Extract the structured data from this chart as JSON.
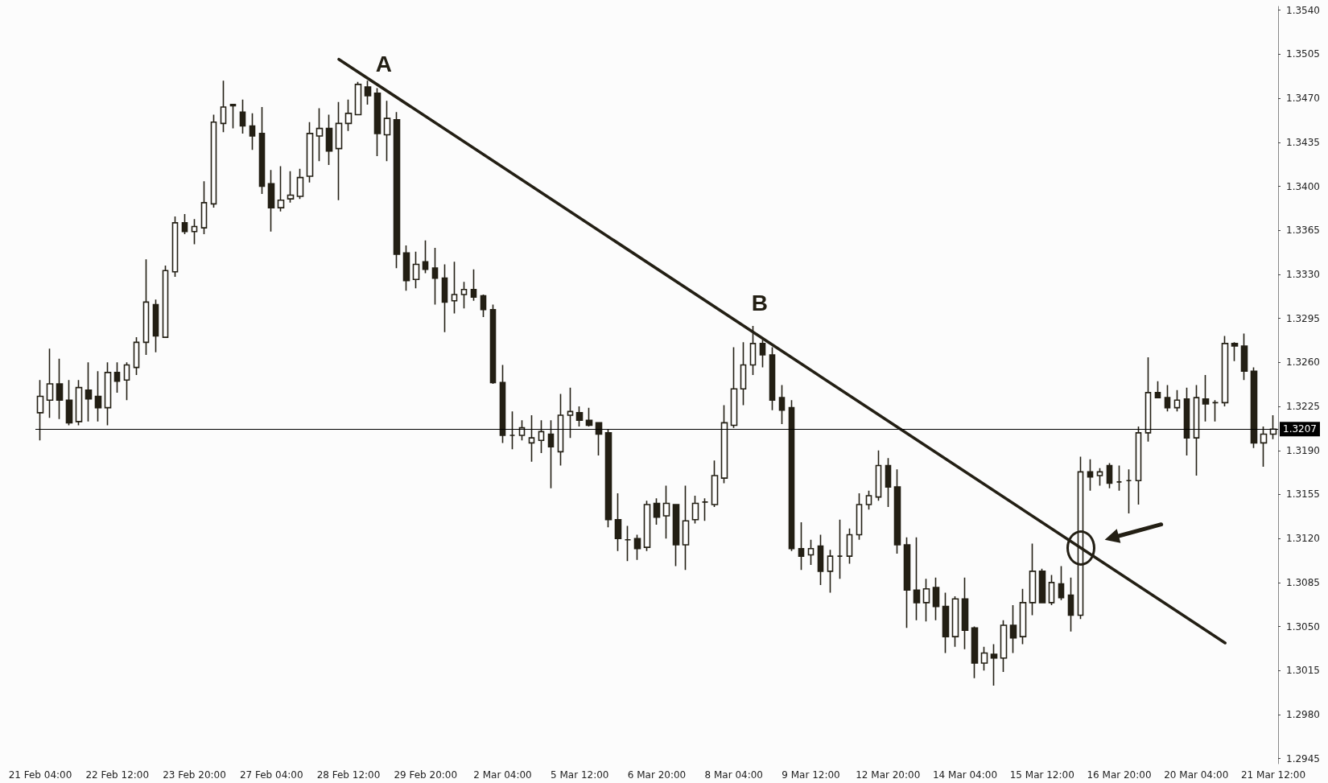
{
  "chart_data": {
    "type": "candlestick",
    "categories": [
      "21 Feb 04:00",
      null,
      null,
      null,
      null,
      null,
      null,
      null,
      "22 Feb 12:00",
      null,
      null,
      null,
      null,
      null,
      null,
      null,
      "23 Feb 20:00",
      null,
      null,
      null,
      null,
      null,
      null,
      null,
      "27 Feb 04:00",
      null,
      null,
      null,
      null,
      null,
      null,
      null,
      "28 Feb 12:00",
      null,
      null,
      null,
      null,
      null,
      null,
      null,
      "29 Feb 20:00",
      null,
      null,
      null,
      null,
      null,
      null,
      null,
      "2 Mar 04:00",
      null,
      null,
      null,
      null,
      null,
      null,
      null,
      "5 Mar 12:00",
      null,
      null,
      null,
      null,
      null,
      null,
      null,
      "6 Mar 20:00",
      null,
      null,
      null,
      null,
      null,
      null,
      null,
      "8 Mar 04:00",
      null,
      null,
      null,
      null,
      null,
      null,
      null,
      "9 Mar 12:00",
      null,
      null,
      null,
      null,
      null,
      null,
      null,
      "12 Mar 20:00",
      null,
      null,
      null,
      null,
      null,
      null,
      null,
      "14 Mar 04:00",
      null,
      null,
      null,
      null,
      null,
      null,
      null,
      "15 Mar 12:00",
      null,
      null,
      null,
      null,
      null,
      null,
      null,
      "16 Mar 20:00",
      null,
      null,
      null,
      null,
      null,
      null,
      null,
      "20 Mar 04:00",
      null,
      null,
      null,
      null,
      null,
      null,
      null,
      "21 Mar 12:00"
    ],
    "series": [
      {
        "type": "candlestick",
        "color": "#231f14",
        "ohlc": [
          [
            1.322,
            1.3246,
            1.3198,
            1.3233
          ],
          [
            1.323,
            1.3271,
            1.3216,
            1.3243
          ],
          [
            1.3243,
            1.3263,
            1.3215,
            1.323
          ],
          [
            1.323,
            1.3246,
            1.321,
            1.3212
          ],
          [
            1.3213,
            1.3246,
            1.321,
            1.324
          ],
          [
            1.3238,
            1.326,
            1.3213,
            1.3231
          ],
          [
            1.3233,
            1.3253,
            1.3213,
            1.3224
          ],
          [
            1.3224,
            1.326,
            1.321,
            1.3252
          ],
          [
            1.3252,
            1.326,
            1.3236,
            1.3245
          ],
          [
            1.3246,
            1.326,
            1.323,
            1.3258
          ],
          [
            1.3256,
            1.328,
            1.325,
            1.3276
          ],
          [
            1.3276,
            1.3342,
            1.3266,
            1.3308
          ],
          [
            1.3306,
            1.331,
            1.3268,
            1.3281
          ],
          [
            1.328,
            1.3337,
            1.328,
            1.3333
          ],
          [
            1.3332,
            1.3376,
            1.3328,
            1.3371
          ],
          [
            1.3371,
            1.3378,
            1.3362,
            1.3364
          ],
          [
            1.3364,
            1.3374,
            1.3354,
            1.3368
          ],
          [
            1.3367,
            1.3404,
            1.3362,
            1.3387
          ],
          [
            1.3386,
            1.3457,
            1.3383,
            1.3451
          ],
          [
            1.345,
            1.3484,
            1.3443,
            1.3463
          ],
          [
            1.3464,
            1.3465,
            1.3446,
            1.3465
          ],
          [
            1.3459,
            1.3469,
            1.3442,
            1.3448
          ],
          [
            1.3448,
            1.3458,
            1.3429,
            1.344
          ],
          [
            1.3442,
            1.3463,
            1.3394,
            1.34
          ],
          [
            1.3402,
            1.3413,
            1.3364,
            1.3383
          ],
          [
            1.3383,
            1.3416,
            1.338,
            1.3389
          ],
          [
            1.339,
            1.3412,
            1.3387,
            1.3393
          ],
          [
            1.3392,
            1.3414,
            1.339,
            1.3407
          ],
          [
            1.3408,
            1.3451,
            1.3403,
            1.3442
          ],
          [
            1.344,
            1.3462,
            1.342,
            1.3446
          ],
          [
            1.3446,
            1.3457,
            1.3417,
            1.3428
          ],
          [
            1.343,
            1.3467,
            1.3389,
            1.345
          ],
          [
            1.345,
            1.3469,
            1.3444,
            1.3458
          ],
          [
            1.3457,
            1.3483,
            1.3457,
            1.3481
          ],
          [
            1.3479,
            1.3484,
            1.3465,
            1.3472
          ],
          [
            1.3474,
            1.3478,
            1.3424,
            1.3442
          ],
          [
            1.3441,
            1.3468,
            1.342,
            1.3454
          ],
          [
            1.3453,
            1.3459,
            1.3335,
            1.3346
          ],
          [
            1.3347,
            1.3353,
            1.3317,
            1.3325
          ],
          [
            1.3326,
            1.3348,
            1.3319,
            1.3338
          ],
          [
            1.334,
            1.3357,
            1.3331,
            1.3334
          ],
          [
            1.3335,
            1.3351,
            1.3306,
            1.3327
          ],
          [
            1.3327,
            1.3338,
            1.3284,
            1.3308
          ],
          [
            1.3309,
            1.334,
            1.3299,
            1.3314
          ],
          [
            1.3314,
            1.3324,
            1.3303,
            1.3318
          ],
          [
            1.3318,
            1.3334,
            1.3309,
            1.3312
          ],
          [
            1.3313,
            1.3314,
            1.3296,
            1.3302
          ],
          [
            1.3302,
            1.3306,
            1.3243,
            1.3244
          ],
          [
            1.3244,
            1.3258,
            1.3196,
            1.3202
          ],
          [
            1.3202,
            1.3221,
            1.3191,
            1.3202
          ],
          [
            1.3202,
            1.3214,
            1.3198,
            1.3208
          ],
          [
            1.3196,
            1.3218,
            1.3181,
            1.32
          ],
          [
            1.3198,
            1.3214,
            1.3188,
            1.3205
          ],
          [
            1.3203,
            1.3214,
            1.316,
            1.3193
          ],
          [
            1.3189,
            1.3235,
            1.3178,
            1.3218
          ],
          [
            1.3218,
            1.324,
            1.32,
            1.3221
          ],
          [
            1.322,
            1.3225,
            1.3209,
            1.3214
          ],
          [
            1.3214,
            1.3224,
            1.3209,
            1.321
          ],
          [
            1.3212,
            1.3212,
            1.3186,
            1.3203
          ],
          [
            1.3204,
            1.3207,
            1.3129,
            1.3135
          ],
          [
            1.3135,
            1.3156,
            1.311,
            1.312
          ],
          [
            1.3119,
            1.313,
            1.3102,
            1.3119
          ],
          [
            1.312,
            1.3123,
            1.3103,
            1.3112
          ],
          [
            1.3113,
            1.315,
            1.311,
            1.3147
          ],
          [
            1.3148,
            1.3152,
            1.3131,
            1.3137
          ],
          [
            1.3138,
            1.3162,
            1.312,
            1.3148
          ],
          [
            1.3147,
            1.3147,
            1.3098,
            1.3115
          ],
          [
            1.3115,
            1.3162,
            1.3095,
            1.3134
          ],
          [
            1.3135,
            1.3154,
            1.3132,
            1.3148
          ],
          [
            1.3149,
            1.3152,
            1.3134,
            1.3149
          ],
          [
            1.3147,
            1.3182,
            1.3145,
            1.317
          ],
          [
            1.3168,
            1.3226,
            1.3164,
            1.3212
          ],
          [
            1.321,
            1.3272,
            1.3208,
            1.3239
          ],
          [
            1.3239,
            1.3276,
            1.3226,
            1.3258
          ],
          [
            1.3258,
            1.3289,
            1.325,
            1.3275
          ],
          [
            1.3275,
            1.3278,
            1.3256,
            1.3266
          ],
          [
            1.3266,
            1.3272,
            1.3222,
            1.323
          ],
          [
            1.3232,
            1.3242,
            1.3211,
            1.3222
          ],
          [
            1.3224,
            1.323,
            1.311,
            1.3112
          ],
          [
            1.3112,
            1.3133,
            1.3095,
            1.3106
          ],
          [
            1.3107,
            1.3119,
            1.3099,
            1.3112
          ],
          [
            1.3114,
            1.3123,
            1.3083,
            1.3094
          ],
          [
            1.3094,
            1.3111,
            1.3077,
            1.3106
          ],
          [
            1.3106,
            1.3135,
            1.3088,
            1.3106
          ],
          [
            1.3106,
            1.3128,
            1.31,
            1.3123
          ],
          [
            1.3123,
            1.3156,
            1.3119,
            1.3147
          ],
          [
            1.3147,
            1.3158,
            1.3143,
            1.3154
          ],
          [
            1.3153,
            1.319,
            1.315,
            1.3178
          ],
          [
            1.3178,
            1.3184,
            1.3145,
            1.3161
          ],
          [
            1.3161,
            1.3175,
            1.3108,
            1.3115
          ],
          [
            1.3115,
            1.3121,
            1.3049,
            1.3079
          ],
          [
            1.3079,
            1.3121,
            1.3055,
            1.3069
          ],
          [
            1.3069,
            1.3088,
            1.3054,
            1.308
          ],
          [
            1.3081,
            1.3089,
            1.3055,
            1.3066
          ],
          [
            1.3066,
            1.3077,
            1.3029,
            1.3042
          ],
          [
            1.3042,
            1.3074,
            1.3034,
            1.3072
          ],
          [
            1.3072,
            1.3089,
            1.3032,
            1.3047
          ],
          [
            1.3049,
            1.305,
            1.3009,
            1.3021
          ],
          [
            1.3021,
            1.3034,
            1.3015,
            1.3029
          ],
          [
            1.3028,
            1.3036,
            1.3003,
            1.3025
          ],
          [
            1.3025,
            1.3055,
            1.3014,
            1.3051
          ],
          [
            1.3051,
            1.3067,
            1.3029,
            1.3041
          ],
          [
            1.3042,
            1.308,
            1.3036,
            1.3069
          ],
          [
            1.3069,
            1.3116,
            1.3059,
            1.3094
          ],
          [
            1.3094,
            1.3096,
            1.3069,
            1.3069
          ],
          [
            1.3069,
            1.3091,
            1.3067,
            1.3085
          ],
          [
            1.3084,
            1.3098,
            1.3071,
            1.3073
          ],
          [
            1.3075,
            1.3089,
            1.3046,
            1.3059
          ],
          [
            1.3059,
            1.3185,
            1.3056,
            1.3173
          ],
          [
            1.3173,
            1.3183,
            1.3158,
            1.3169
          ],
          [
            1.317,
            1.3176,
            1.3162,
            1.3173
          ],
          [
            1.3178,
            1.318,
            1.316,
            1.3164
          ],
          [
            1.3165,
            1.3178,
            1.3158,
            1.3165
          ],
          [
            1.3166,
            1.3175,
            1.314,
            1.3166
          ],
          [
            1.3166,
            1.3209,
            1.3147,
            1.3204
          ],
          [
            1.3204,
            1.3264,
            1.3197,
            1.3236
          ],
          [
            1.3236,
            1.3245,
            1.3232,
            1.3232
          ],
          [
            1.3232,
            1.3242,
            1.3221,
            1.3224
          ],
          [
            1.3224,
            1.3238,
            1.3221,
            1.323
          ],
          [
            1.3231,
            1.324,
            1.3186,
            1.32
          ],
          [
            1.32,
            1.3242,
            1.317,
            1.3232
          ],
          [
            1.3231,
            1.325,
            1.3213,
            1.3227
          ],
          [
            1.3228,
            1.323,
            1.3213,
            1.3228
          ],
          [
            1.3228,
            1.3281,
            1.3225,
            1.3275
          ],
          [
            1.3275,
            1.3276,
            1.3261,
            1.3273
          ],
          [
            1.3273,
            1.3283,
            1.3246,
            1.3253
          ],
          [
            1.3253,
            1.3256,
            1.3192,
            1.3196
          ],
          [
            1.3196,
            1.3209,
            1.3177,
            1.3203
          ],
          [
            1.3203,
            1.3218,
            1.3199,
            1.3207
          ]
        ]
      },
      {
        "type": "line",
        "color": "#231f14",
        "values": [
          null,
          null,
          null,
          null,
          null,
          null,
          null,
          null,
          null,
          null,
          null,
          null,
          null,
          null,
          null,
          null,
          null,
          null,
          null,
          null,
          null,
          null,
          null,
          null,
          null,
          null,
          null,
          null,
          null,
          null,
          null,
          1.3501,
          null,
          null,
          null,
          null,
          null,
          null,
          null,
          null,
          null,
          null,
          null,
          null,
          null,
          null,
          null,
          null,
          null,
          null,
          null,
          null,
          null,
          null,
          null,
          null,
          null,
          null,
          null,
          null,
          null,
          null,
          null,
          null,
          null,
          null,
          null,
          null,
          null,
          null,
          null,
          null,
          null,
          null,
          null,
          null,
          null,
          null,
          null,
          null,
          null,
          null,
          null,
          null,
          null,
          null,
          null,
          null,
          null,
          null,
          null,
          null,
          null,
          null,
          null,
          null,
          null,
          null,
          null,
          null,
          null,
          null,
          null,
          null,
          null,
          null,
          null,
          null,
          null,
          null,
          null,
          null,
          null,
          null,
          null,
          null,
          null,
          null,
          null,
          null,
          null,
          null,
          null,
          1.3037,
          null,
          null,
          null,
          null,
          null
        ]
      }
    ],
    "ylim": [
      1.2941,
      1.3543
    ],
    "yticks": [
      {
        "value": 1.2945,
        "label": "1.2945"
      },
      {
        "value": 1.298,
        "label": "1.2980"
      },
      {
        "value": 1.3015,
        "label": "1.3015"
      },
      {
        "value": 1.305,
        "label": "1.3050"
      },
      {
        "value": 1.3085,
        "label": "1.3085"
      },
      {
        "value": 1.312,
        "label": "1.3120"
      },
      {
        "value": 1.3155,
        "label": "1.3155"
      },
      {
        "value": 1.319,
        "label": "1.3190"
      },
      {
        "value": 1.3225,
        "label": "1.3225"
      },
      {
        "value": 1.326,
        "label": "1.3260"
      },
      {
        "value": 1.3295,
        "label": "1.3295"
      },
      {
        "value": 1.333,
        "label": "1.3330"
      },
      {
        "value": 1.3365,
        "label": "1.3365"
      },
      {
        "value": 1.34,
        "label": "1.3400"
      },
      {
        "value": 1.3435,
        "label": "1.3435"
      },
      {
        "value": 1.347,
        "label": "1.3470"
      },
      {
        "value": 1.3505,
        "label": "1.3505"
      },
      {
        "value": 1.354,
        "label": "1.3540"
      }
    ],
    "ref_lines": [
      {
        "axis": "y",
        "value": 1.3207,
        "label": "1.3207",
        "color": "#000000"
      }
    ],
    "annotations": [
      "A",
      "B"
    ]
  }
}
